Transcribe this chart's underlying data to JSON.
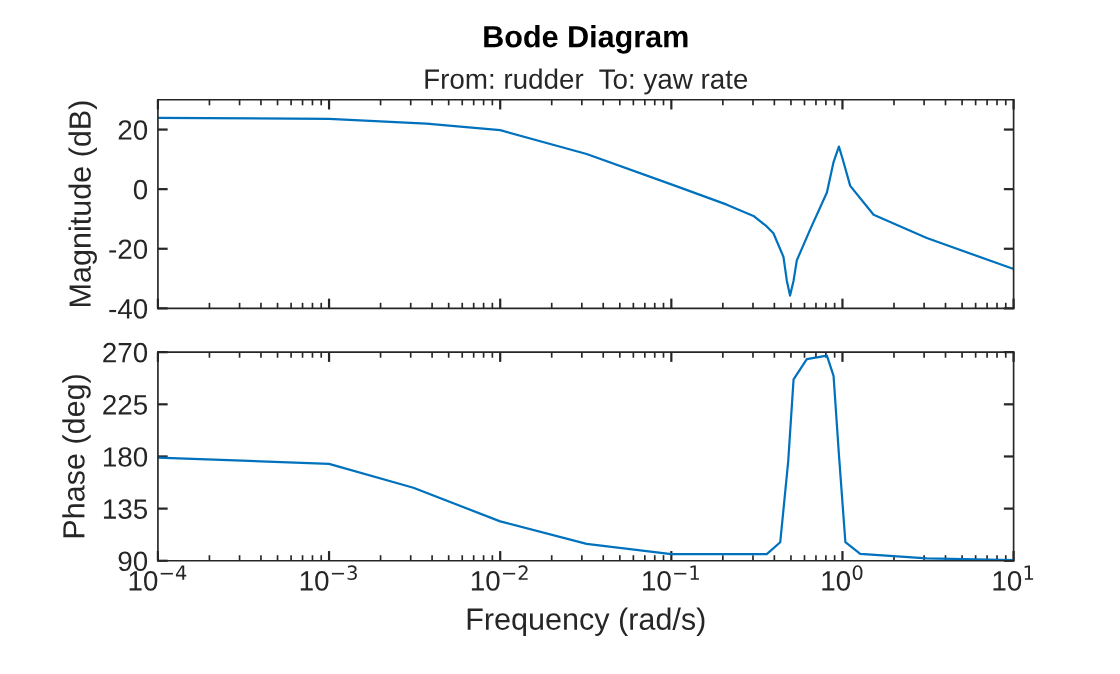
{
  "chart_data": [
    {
      "type": "line",
      "title": "Bode Diagram",
      "subtitle": "From: rudder  To: yaw rate",
      "ylabel": "Magnitude (dB)",
      "log": "x",
      "tick_labels": "y",
      "grid": false,
      "legend": false,
      "xlim": [
        0.0001,
        10
      ],
      "xticks": [
        {
          "value": 0.0001,
          "label": null
        },
        {
          "value": 0.001,
          "label": null
        },
        {
          "value": 0.01,
          "label": null
        },
        {
          "value": 0.1,
          "label": null
        },
        {
          "value": 1,
          "label": null
        },
        {
          "value": 10,
          "label": null
        }
      ],
      "ylim": [
        -40,
        30
      ],
      "yticks": [
        -40,
        -20,
        0,
        20
      ],
      "series": [
        {
          "color": "#0072bd",
          "x": [
            0.0001,
            0.001,
            0.0037,
            0.01,
            0.032,
            0.1,
            0.211,
            0.302,
            0.361,
            0.395,
            0.452,
            0.473,
            0.494,
            0.518,
            0.541,
            0.647,
            0.811,
            0.887,
            0.953,
            1.014,
            1.11,
            1.52,
            3.11,
            10
          ],
          "values": [
            23.9,
            23.6,
            22,
            19.8,
            11.8,
            1.6,
            -5.2,
            -9,
            -12.5,
            -14.8,
            -22.7,
            -30.7,
            -35.7,
            -30.7,
            -23.9,
            -13.6,
            -1.1,
            9.1,
            14.3,
            9.1,
            1.1,
            -8.6,
            -16.4,
            -26.8
          ]
        }
      ]
    },
    {
      "type": "line",
      "xlabel": "Frequency (rad/s)",
      "ylabel": "Phase (deg)",
      "log": "x",
      "grid": false,
      "legend": false,
      "xlim": [
        0.0001,
        10
      ],
      "xticks": [
        {
          "value": 0.0001,
          "label": "10$^{−4}$"
        },
        {
          "value": 0.001,
          "label": "10$^{−3}$"
        },
        {
          "value": 0.01,
          "label": "10$^{−2}$"
        },
        {
          "value": 0.1,
          "label": "10$^{−1}$"
        },
        {
          "value": 1,
          "label": "10$^{0}$"
        },
        {
          "value": 10,
          "label": "10$^{1}$"
        }
      ],
      "ylim": [
        90,
        270
      ],
      "yticks": [
        90,
        135,
        180,
        225,
        270
      ],
      "series": [
        {
          "color": "#0072bd",
          "x": [
            0.0001,
            0.001,
            0.00311,
            0.01,
            0.032,
            0.1,
            0.361,
            0.433,
            0.482,
            0.518,
            0.619,
            0.811,
            0.887,
            0.953,
            1.04,
            1.27,
            3.11,
            10
          ],
          "values": [
            179,
            173.6,
            153,
            124,
            104.6,
            95.8,
            95.8,
            106,
            176,
            246.6,
            264,
            267,
            249.5,
            182,
            106,
            96,
            92,
            90.6
          ]
        }
      ]
    }
  ]
}
